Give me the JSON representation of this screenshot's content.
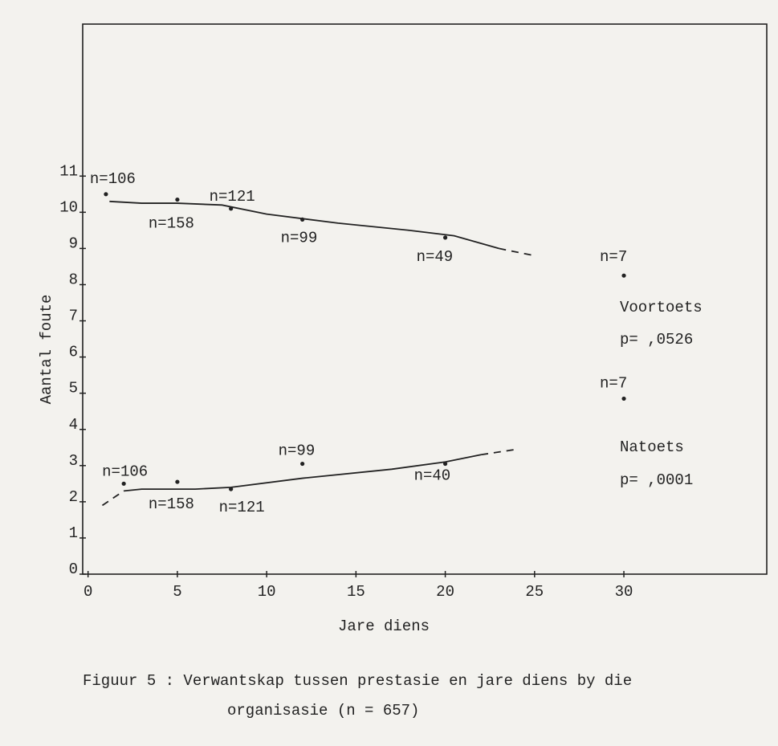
{
  "chart_data": {
    "type": "scatter",
    "xlabel": "Jare  diens",
    "ylabel": "Aantal foute",
    "xlim": [
      -0.3,
      38
    ],
    "ylim": [
      0,
      15.2
    ],
    "xticks": [
      0,
      5,
      10,
      15,
      20,
      25,
      30
    ],
    "yticks": [
      0,
      1,
      2,
      3,
      4,
      5,
      6,
      7,
      8,
      9,
      10,
      11
    ],
    "color": "#222222",
    "series": [
      {
        "name": "Voortoets",
        "x": [
          1,
          5,
          8,
          12,
          20,
          30
        ],
        "values": [
          10.5,
          10.35,
          10.1,
          9.8,
          9.3,
          8.25
        ],
        "point_labels": [
          "n=106",
          "n=158",
          "n=121",
          "n=99",
          "n=49",
          "n=7"
        ],
        "trend_x": [
          1.2,
          3,
          5,
          7.5,
          10,
          14,
          18,
          20.5,
          23
        ],
        "trend": [
          10.3,
          10.25,
          10.25,
          10.2,
          9.95,
          9.7,
          9.5,
          9.35,
          9.0
        ],
        "trend_extension_x": [
          23,
          25
        ],
        "trend_extension": [
          9.0,
          8.8
        ]
      },
      {
        "name": "Natoets",
        "x": [
          2,
          5,
          8,
          12,
          20,
          30
        ],
        "values": [
          2.5,
          2.55,
          2.35,
          3.05,
          3.05,
          4.85
        ],
        "point_labels": [
          "n=106",
          "n=158",
          "n=121",
          "n=99",
          "n=40",
          "n=7"
        ],
        "trend_x": [
          2,
          3,
          6,
          8,
          12,
          17,
          20,
          22
        ],
        "trend": [
          2.3,
          2.35,
          2.35,
          2.4,
          2.65,
          2.9,
          3.1,
          3.3
        ],
        "trend_extension_x": [
          0.8,
          2
        ],
        "trend_extension": [
          1.9,
          2.3
        ],
        "trend_extension2_x": [
          22,
          24
        ],
        "trend_extension2": [
          3.3,
          3.45
        ]
      }
    ],
    "annotations": [
      "Voortoets",
      "p= ,0526",
      "Natoets",
      "p= ,0001"
    ],
    "caption": [
      "Figuur  5  :  Verwantskap tussen prestasie en jare diens by die",
      "organisasie  (n = 657)"
    ]
  }
}
